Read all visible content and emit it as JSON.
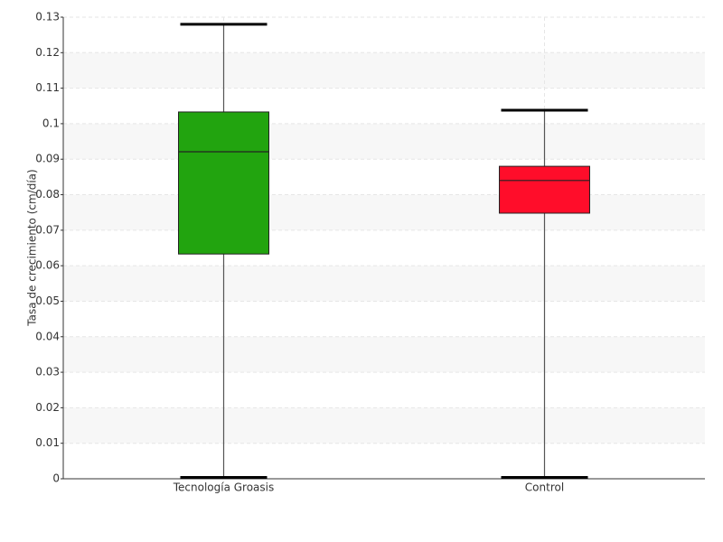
{
  "chart_data": {
    "type": "box",
    "y_label": "Tasa de crecimiento (cm/día)",
    "categories": [
      "Tecnología Groasis",
      "Control"
    ],
    "boxes": [
      {
        "min": 0,
        "q1": 0.0633,
        "median": 0.0921,
        "q3": 0.1033,
        "max": 0.128,
        "color": "#22a40f"
      },
      {
        "min": 0,
        "q1": 0.0748,
        "median": 0.084,
        "q3": 0.088,
        "max": 0.1038,
        "color": "#ff0d2a"
      }
    ],
    "ylim": [
      0,
      0.13
    ],
    "yticks": [
      0,
      0.01,
      0.02,
      0.03,
      0.04,
      0.05,
      0.06,
      0.07,
      0.08,
      0.09,
      0.1,
      0.11,
      0.12,
      0.13
    ],
    "grid": true
  }
}
